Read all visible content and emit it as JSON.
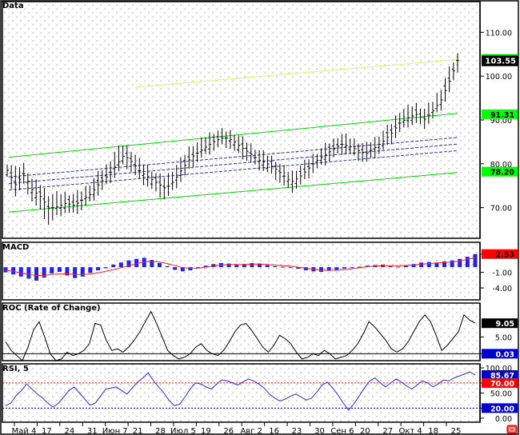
{
  "chart_data": [
    {
      "panel": "price",
      "type": "ohlc",
      "title": "Data",
      "yticks": [
        70,
        80,
        90,
        100,
        110
      ],
      "ytick_labels": [
        "70.00",
        "80.00",
        "90.00",
        "100.00",
        "110.00"
      ],
      "ylim": [
        63,
        117
      ],
      "last_price": 103.55,
      "last_price_label": "103.55",
      "badges": [
        {
          "label": "91.31",
          "value": 91.31,
          "color": "#00ff00"
        },
        {
          "label": "78.20",
          "value": 78.2,
          "color": "#00ff00"
        }
      ],
      "close_series": [
        78.5,
        75.2,
        77.8,
        74.0,
        72.5,
        69.8,
        70.2,
        71.0,
        70.5,
        71.8,
        73.1,
        75.4,
        77.2,
        79.5,
        82.0,
        80.3,
        78.1,
        76.9,
        75.5,
        74.3,
        76.1,
        78.9,
        81.4,
        82.7,
        84.1,
        85.3,
        86.0,
        85.4,
        83.8,
        82.5,
        81.0,
        80.2,
        79.1,
        77.5,
        75.8,
        76.9,
        78.7,
        80.6,
        81.9,
        83.2,
        84.5,
        84.0,
        83.1,
        82.2,
        83.6,
        85.0,
        86.8,
        89.2,
        90.5,
        91.3,
        90.1,
        92.0,
        94.5,
        98.8,
        103.55
      ],
      "high_series": [
        79.8,
        78.5,
        79.5,
        76.0,
        74.8,
        72.5,
        72.8,
        72.9,
        72.6,
        73.5,
        75.2,
        77.6,
        79.3,
        82.6,
        84.1,
        82.5,
        80.0,
        78.8,
        77.0,
        76.5,
        78.5,
        80.9,
        83.8,
        84.5,
        86.2,
        87.0,
        87.2,
        86.9,
        85.6,
        84.2,
        82.8,
        81.8,
        80.8,
        78.9,
        77.5,
        78.8,
        80.5,
        82.0,
        83.6,
        84.8,
        86.4,
        85.6,
        84.7,
        83.9,
        85.2,
        86.9,
        88.6,
        91.5,
        92.4,
        93.2,
        92.0,
        93.8,
        96.8,
        101.2,
        104.5
      ],
      "low_series": [
        77.0,
        73.0,
        75.5,
        71.8,
        69.5,
        66.5,
        68.4,
        69.3,
        68.8,
        70.0,
        71.6,
        73.4,
        75.6,
        77.5,
        80.2,
        78.4,
        76.3,
        75.1,
        73.4,
        72.2,
        74.4,
        76.8,
        79.4,
        81.3,
        82.5,
        83.8,
        84.6,
        83.7,
        82.0,
        80.9,
        79.4,
        78.6,
        77.4,
        75.6,
        73.9,
        75.2,
        77.1,
        79.0,
        80.2,
        81.6,
        82.8,
        82.6,
        81.5,
        80.6,
        81.9,
        83.3,
        85.0,
        87.4,
        89.0,
        89.6,
        88.7,
        90.5,
        92.8,
        96.5,
        101.6
      ],
      "channels": [
        {
          "kind": "solid",
          "color": "#00dd00",
          "from": 81.5,
          "to": 91.5
        },
        {
          "kind": "solid",
          "color": "#00dd00",
          "from": 69.0,
          "to": 78.0
        },
        {
          "kind": "solid",
          "color": "#ccff66",
          "from": 97.5,
          "to": 103.8
        },
        {
          "kind": "dashed",
          "color": "#3333aa",
          "from": 77.0,
          "to": 86.0
        },
        {
          "kind": "dashed",
          "color": "#3333aa",
          "from": 75.5,
          "to": 84.5
        },
        {
          "kind": "dashed",
          "color": "#3333aa",
          "from": 74.0,
          "to": 83.0
        }
      ]
    },
    {
      "panel": "macd",
      "type": "bar",
      "title": "MACD",
      "yticks": [
        2.5,
        -1.0,
        -4.0
      ],
      "ytick_labels": [
        "",
        "-1.00",
        "-4.00"
      ],
      "ylim": [
        -6.3,
        4.8
      ],
      "badge": {
        "label": "2.53",
        "value": 2.53,
        "color": "#ff0000"
      },
      "histogram": [
        -1.0,
        -1.4,
        -1.8,
        -2.2,
        -2.6,
        -2.0,
        -1.2,
        -0.9,
        -1.6,
        -2.1,
        -1.8,
        -1.1,
        -0.6,
        -0.2,
        0.5,
        0.9,
        1.3,
        1.6,
        1.8,
        1.4,
        0.8,
        0.2,
        -0.5,
        -0.8,
        -0.6,
        -0.1,
        0.3,
        0.6,
        0.8,
        0.7,
        0.5,
        0.6,
        0.8,
        0.7,
        0.4,
        0.2,
        0.1,
        0.0,
        -0.3,
        -0.6,
        -0.8,
        -0.9,
        -0.7,
        -0.5,
        -0.3,
        -0.1,
        0.1,
        0.3,
        0.4,
        0.5,
        0.2,
        0.1,
        0.4,
        0.6,
        0.9,
        1.0,
        0.9,
        1.1,
        1.3,
        1.6,
        2.0,
        2.53
      ],
      "signal": [
        -0.6,
        -0.8,
        -1.1,
        -1.4,
        -1.6,
        -1.6,
        -1.4,
        -1.3,
        -1.3,
        -1.4,
        -1.4,
        -1.3,
        -1.1,
        -0.8,
        -0.5,
        -0.1,
        0.3,
        0.7,
        1.0,
        1.1,
        1.0,
        0.7,
        0.3,
        -0.1,
        -0.2,
        -0.2,
        0.0,
        0.2,
        0.4,
        0.5,
        0.5,
        0.5,
        0.6,
        0.6,
        0.5,
        0.4,
        0.3,
        0.2,
        0.0,
        -0.2,
        -0.4,
        -0.6,
        -0.6,
        -0.6,
        -0.5,
        -0.3,
        -0.1,
        0.1,
        0.2,
        0.3,
        0.3,
        0.3,
        0.3,
        0.4,
        0.6,
        0.7,
        0.8,
        0.9,
        1.0,
        1.2,
        1.5,
        1.8
      ]
    },
    {
      "panel": "roc",
      "type": "line",
      "title": "ROC (Rate of Change)",
      "yticks": [
        5,
        0.03
      ],
      "ytick_labels": [
        "5.00",
        ""
      ],
      "ylim": [
        -2.0,
        15.0
      ],
      "badges": [
        {
          "label": "9.05",
          "value": 9.05,
          "color": "#000000"
        },
        {
          "label": "0.03",
          "value": 0.03,
          "color": "#0000cc"
        }
      ],
      "zero_line": 0.03,
      "values": [
        3.5,
        1.0,
        -0.5,
        -2.0,
        2.0,
        7.0,
        9.5,
        5.0,
        0.0,
        -2.0,
        -1.5,
        0.5,
        -0.5,
        0.0,
        1.0,
        3.0,
        9.0,
        8.5,
        4.0,
        1.0,
        1.5,
        0.5,
        2.0,
        4.0,
        6.5,
        9.5,
        12.5,
        9.0,
        5.0,
        1.0,
        -0.5,
        -1.5,
        -1.0,
        0.0,
        2.0,
        3.0,
        1.0,
        0.0,
        -0.5,
        1.0,
        3.5,
        6.5,
        8.5,
        9.0,
        7.0,
        4.5,
        2.0,
        0.5,
        2.5,
        5.5,
        4.5,
        3.0,
        0.5,
        -1.5,
        -1.0,
        0.0,
        -0.5,
        1.0,
        0.0,
        -1.5,
        -1.0,
        -0.5,
        1.0,
        3.0,
        6.0,
        9.5,
        8.0,
        6.0,
        4.0,
        1.5,
        0.5,
        1.5,
        3.5,
        6.5,
        9.5,
        11.5,
        9.5,
        5.5,
        1.0,
        2.5,
        4.5,
        6.5,
        11.5,
        10.0,
        9.05
      ]
    },
    {
      "panel": "rsi",
      "type": "line",
      "title": "RSI, 5",
      "yticks": [
        100,
        70,
        50,
        20,
        0
      ],
      "ytick_labels": [
        "100.00",
        "70.00",
        "50.00",
        "20.00",
        "0.00"
      ],
      "ylim": [
        -8.0,
        108.0
      ],
      "overbought": 70,
      "oversold": 20,
      "badges": [
        {
          "label": "85.67",
          "value": 85.67,
          "color": "#0000cc"
        },
        {
          "label": "70.00",
          "value": 70.0,
          "color": "#ff0000"
        },
        {
          "label": "20.00",
          "value": 20.0,
          "color": "#0000cc"
        }
      ],
      "values": [
        25,
        30,
        45,
        55,
        68,
        58,
        48,
        40,
        30,
        22,
        30,
        42,
        55,
        62,
        50,
        38,
        26,
        30,
        44,
        58,
        60,
        62,
        55,
        48,
        60,
        72,
        80,
        90,
        75,
        62,
        50,
        35,
        25,
        28,
        42,
        58,
        70,
        68,
        62,
        58,
        68,
        76,
        74,
        70,
        66,
        72,
        78,
        74,
        68,
        60,
        48,
        40,
        34,
        38,
        44,
        48,
        42,
        36,
        40,
        52,
        66,
        72,
        60,
        46,
        30,
        16,
        28,
        44,
        60,
        74,
        80,
        70,
        62,
        70,
        78,
        72,
        64,
        58,
        66,
        74,
        70,
        62,
        68,
        76,
        74,
        80,
        84,
        88,
        92,
        85.67
      ],
      "x_tick_labels": [
        "Май 4",
        "17",
        "24",
        "31",
        "Июн 7",
        "21",
        "28",
        "Июл 5",
        "19",
        "26",
        "Авг 2",
        "16",
        "23",
        "30",
        "Сен 6",
        "20",
        "27",
        "Окт 4",
        "18",
        "25"
      ]
    }
  ]
}
